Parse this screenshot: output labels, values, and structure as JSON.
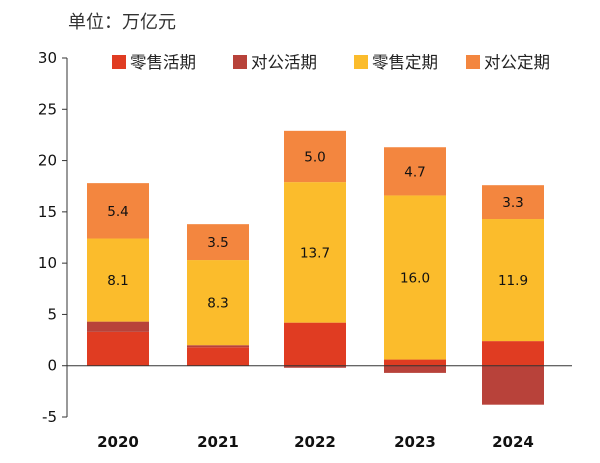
{
  "unit_label": "单位：万亿元",
  "chart_data": {
    "type": "bar",
    "stacked": true,
    "categories": [
      "2020",
      "2021",
      "2022",
      "2023",
      "2024"
    ],
    "ylim": [
      -5,
      30
    ],
    "yticks": [
      -5,
      0,
      5,
      10,
      15,
      20,
      25,
      30
    ],
    "legend_position": "top-right",
    "series": [
      {
        "name": "零售活期",
        "color": "#e03c22",
        "values": [
          3.3,
          1.8,
          4.2,
          0.6,
          2.4
        ]
      },
      {
        "name": "对公活期",
        "color": "#b8423a",
        "values": [
          1.0,
          0.2,
          -0.2,
          -0.7,
          -3.8
        ]
      },
      {
        "name": "零售定期",
        "color": "#fbbc2c",
        "values": [
          8.1,
          8.3,
          13.7,
          16.0,
          11.9
        ]
      },
      {
        "name": "对公定期",
        "color": "#f3863f",
        "values": [
          5.4,
          3.5,
          5.0,
          4.7,
          3.3
        ]
      }
    ],
    "data_labels": {
      "零售定期": [
        "8.1",
        "8.3",
        "13.7",
        "16.0",
        "11.9"
      ],
      "对公定期": [
        "5.4",
        "3.5",
        "5.0",
        "4.7",
        "3.3"
      ]
    }
  }
}
